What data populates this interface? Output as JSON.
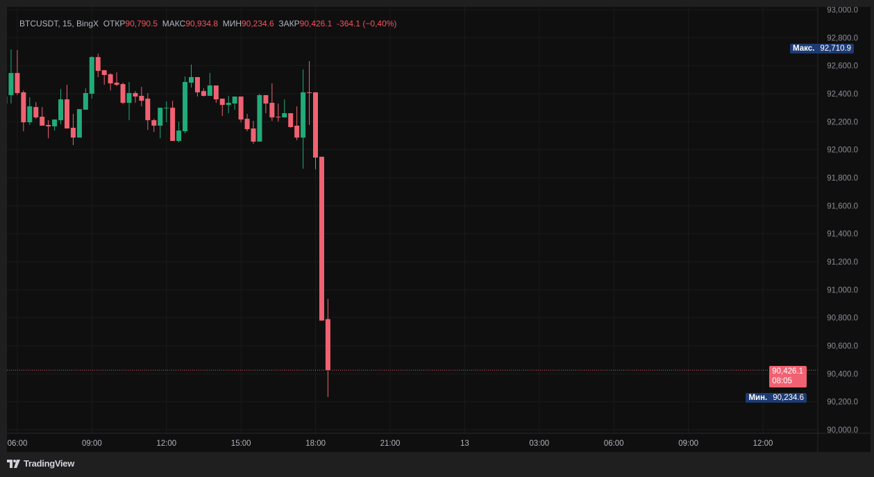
{
  "legend": {
    "symbol": "BTCUSDT, 15, BingX",
    "open_label": "ОТКР",
    "open": "90,790.5",
    "high_label": "МАКС",
    "high": "90,934.8",
    "low_label": "МИН",
    "low": "90,234.6",
    "close_label": "ЗАКР",
    "close": "90,426.1",
    "change": "-364.1 (−0,40%)"
  },
  "markers": {
    "max_label": "Макс.",
    "max_value": "92,710.9",
    "min_label": "Мин.",
    "min_value": "90,234.6",
    "last_price": "90,426.1",
    "countdown": "08:05"
  },
  "footer": {
    "brand": "TradingView"
  },
  "colors": {
    "up": "#26a69a",
    "up_body": "#22ab7a",
    "down": "#f06272",
    "marker": "#1d3a72",
    "last": "#f06272"
  },
  "chart_data": {
    "type": "candlestick",
    "y_ticks": [
      "93,000.0",
      "92,800.0",
      "92,600.0",
      "92,400.0",
      "92,200.0",
      "92,000.0",
      "91,800.0",
      "91,600.0",
      "91,400.0",
      "91,200.0",
      "91,000.0",
      "90,800.0",
      "90,600.0",
      "90,400.0",
      "90,200.0",
      "90,000.0"
    ],
    "ylim": [
      90000,
      93000
    ],
    "x_ticks": [
      "06:00",
      "09:00",
      "12:00",
      "15:00",
      "18:00",
      "21:00",
      "13",
      "03:00",
      "06:00",
      "09:00",
      "12:00"
    ],
    "interval": "15",
    "grid": true,
    "candles": [
      {
        "t": "05:30",
        "o": 92330,
        "h": 92400,
        "l": 92320,
        "c": 92380
      },
      {
        "t": "05:45",
        "o": 92390,
        "h": 92717,
        "l": 92330,
        "c": 92548
      },
      {
        "t": "06:00",
        "o": 92548,
        "h": 92712,
        "l": 92390,
        "c": 92405
      },
      {
        "t": "06:15",
        "o": 92410,
        "h": 92424,
        "l": 92132,
        "c": 92196
      },
      {
        "t": "06:30",
        "o": 92196,
        "h": 92375,
        "l": 92177,
        "c": 92310
      },
      {
        "t": "06:45",
        "o": 92305,
        "h": 92340,
        "l": 92221,
        "c": 92231
      },
      {
        "t": "07:00",
        "o": 92236,
        "h": 92305,
        "l": 92172,
        "c": 92172
      },
      {
        "t": "07:15",
        "o": 92177,
        "h": 92211,
        "l": 92082,
        "c": 92167
      },
      {
        "t": "07:30",
        "o": 92167,
        "h": 92216,
        "l": 92137,
        "c": 92216
      },
      {
        "t": "07:45",
        "o": 92211,
        "h": 92434,
        "l": 92182,
        "c": 92360
      },
      {
        "t": "08:00",
        "o": 92360,
        "h": 92464,
        "l": 92152,
        "c": 92152
      },
      {
        "t": "08:15",
        "o": 92157,
        "h": 92256,
        "l": 92033,
        "c": 92087
      },
      {
        "t": "08:30",
        "o": 92087,
        "h": 92290,
        "l": 92087,
        "c": 92290
      },
      {
        "t": "08:45",
        "o": 92286,
        "h": 92439,
        "l": 92286,
        "c": 92405
      },
      {
        "t": "09:00",
        "o": 92400,
        "h": 92667,
        "l": 92365,
        "c": 92662
      },
      {
        "t": "09:15",
        "o": 92662,
        "h": 92687,
        "l": 92519,
        "c": 92563
      },
      {
        "t": "09:30",
        "o": 92568,
        "h": 92568,
        "l": 92464,
        "c": 92534
      },
      {
        "t": "09:45",
        "o": 92539,
        "h": 92548,
        "l": 92424,
        "c": 92474
      },
      {
        "t": "10:00",
        "o": 92479,
        "h": 92553,
        "l": 92454,
        "c": 92464
      },
      {
        "t": "10:15",
        "o": 92469,
        "h": 92479,
        "l": 92325,
        "c": 92335
      },
      {
        "t": "10:30",
        "o": 92335,
        "h": 92484,
        "l": 92211,
        "c": 92405
      },
      {
        "t": "10:45",
        "o": 92405,
        "h": 92419,
        "l": 92335,
        "c": 92380
      },
      {
        "t": "11:00",
        "o": 92385,
        "h": 92449,
        "l": 92310,
        "c": 92350
      },
      {
        "t": "11:15",
        "o": 92365,
        "h": 92405,
        "l": 92142,
        "c": 92211
      },
      {
        "t": "11:30",
        "o": 92211,
        "h": 92221,
        "l": 92127,
        "c": 92172
      },
      {
        "t": "11:45",
        "o": 92172,
        "h": 92300,
        "l": 92082,
        "c": 92300
      },
      {
        "t": "12:00",
        "o": 92295,
        "h": 92345,
        "l": 92196,
        "c": 92300
      },
      {
        "t": "12:15",
        "o": 92300,
        "h": 92350,
        "l": 92063,
        "c": 92063
      },
      {
        "t": "12:30",
        "o": 92063,
        "h": 92201,
        "l": 92053,
        "c": 92137
      },
      {
        "t": "12:45",
        "o": 92132,
        "h": 92524,
        "l": 92117,
        "c": 92484
      },
      {
        "t": "13:00",
        "o": 92479,
        "h": 92608,
        "l": 92444,
        "c": 92519
      },
      {
        "t": "13:15",
        "o": 92519,
        "h": 92519,
        "l": 92380,
        "c": 92410
      },
      {
        "t": "13:30",
        "o": 92419,
        "h": 92439,
        "l": 92380,
        "c": 92385
      },
      {
        "t": "13:45",
        "o": 92385,
        "h": 92548,
        "l": 92385,
        "c": 92459
      },
      {
        "t": "14:00",
        "o": 92459,
        "h": 92459,
        "l": 92335,
        "c": 92360
      },
      {
        "t": "14:15",
        "o": 92365,
        "h": 92365,
        "l": 92241,
        "c": 92320
      },
      {
        "t": "14:30",
        "o": 92320,
        "h": 92385,
        "l": 92261,
        "c": 92335
      },
      {
        "t": "14:45",
        "o": 92330,
        "h": 92380,
        "l": 92286,
        "c": 92380
      },
      {
        "t": "15:00",
        "o": 92380,
        "h": 92380,
        "l": 92196,
        "c": 92216
      },
      {
        "t": "15:15",
        "o": 92221,
        "h": 92256,
        "l": 92132,
        "c": 92147
      },
      {
        "t": "15:30",
        "o": 92152,
        "h": 92206,
        "l": 92043,
        "c": 92058
      },
      {
        "t": "15:45",
        "o": 92058,
        "h": 92400,
        "l": 92058,
        "c": 92390
      },
      {
        "t": "16:00",
        "o": 92390,
        "h": 92390,
        "l": 92261,
        "c": 92330
      },
      {
        "t": "16:15",
        "o": 92335,
        "h": 92474,
        "l": 92206,
        "c": 92231
      },
      {
        "t": "16:30",
        "o": 92236,
        "h": 92330,
        "l": 92201,
        "c": 92231
      },
      {
        "t": "16:45",
        "o": 92231,
        "h": 92360,
        "l": 92231,
        "c": 92261
      },
      {
        "t": "17:00",
        "o": 92261,
        "h": 92261,
        "l": 92157,
        "c": 92162
      },
      {
        "t": "17:15",
        "o": 92172,
        "h": 92310,
        "l": 92068,
        "c": 92087
      },
      {
        "t": "17:30",
        "o": 92087,
        "h": 92573,
        "l": 91865,
        "c": 92410
      },
      {
        "t": "17:45",
        "o": 92410,
        "h": 92633,
        "l": 92177,
        "c": 92405
      },
      {
        "t": "18:00",
        "o": 92410,
        "h": 92410,
        "l": 91860,
        "c": 91944
      },
      {
        "t": "18:15",
        "o": 91950,
        "h": 91950,
        "l": 90780,
        "c": 90780
      },
      {
        "t": "18:30",
        "o": 90790.5,
        "h": 90934.8,
        "l": 90234.6,
        "c": 90426.1
      }
    ]
  }
}
